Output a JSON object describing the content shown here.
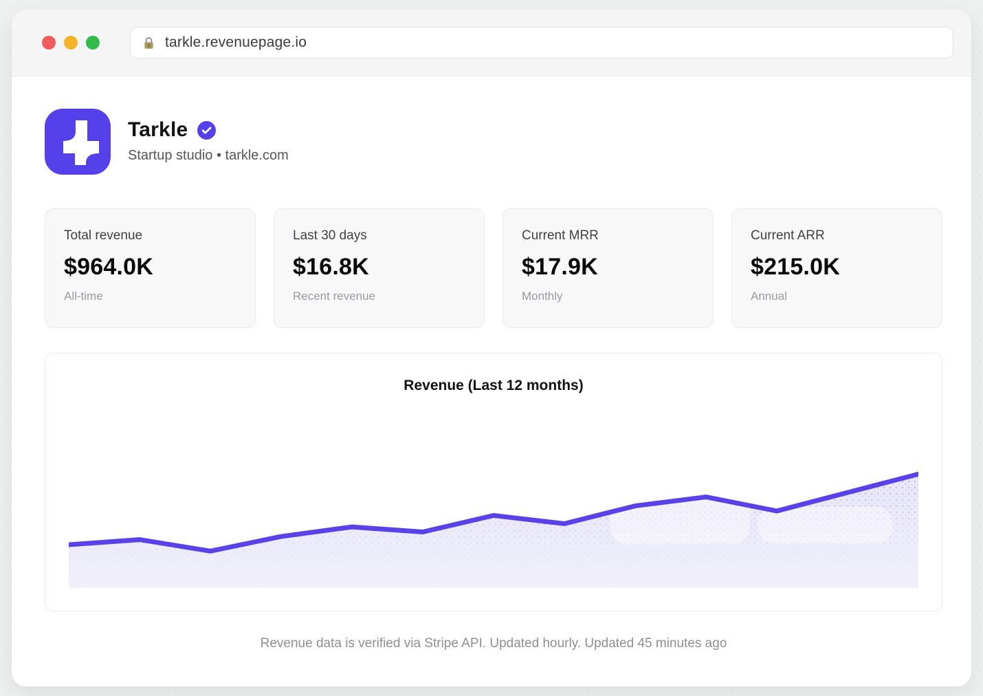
{
  "browser": {
    "url": "tarkle.revenuepage.io",
    "traffic_lights": {
      "close": "#f15b5c",
      "minimize": "#f3b32b",
      "zoom": "#30bb4a"
    }
  },
  "profile": {
    "name": "Tarkle",
    "verified": true,
    "subtitle": "Startup studio • tarkle.com"
  },
  "stats": [
    {
      "label": "Total revenue",
      "value": "$964.0K",
      "sublabel": "All-time"
    },
    {
      "label": "Last 30 days",
      "value": "$16.8K",
      "sublabel": "Recent revenue"
    },
    {
      "label": "Current MRR",
      "value": "$17.9K",
      "sublabel": "Monthly"
    },
    {
      "label": "Current ARR",
      "value": "$215.0K",
      "sublabel": "Annual"
    }
  ],
  "chart_data": {
    "type": "area",
    "title": "Revenue (Last 12 months)",
    "x": [
      1,
      2,
      3,
      4,
      5,
      6,
      7,
      8,
      9,
      10,
      11,
      12,
      13
    ],
    "values": [
      6.8,
      7.6,
      5.8,
      8.1,
      9.6,
      8.8,
      11.4,
      10.1,
      12.9,
      14.3,
      12.1,
      15.0,
      17.9
    ],
    "unit": "K USD",
    "ylim": [
      0,
      20
    ],
    "grid": false,
    "axes_labels_visible": false,
    "legend": false,
    "line_color": "#5a43e6",
    "dot_color": "#6550e8",
    "fill_gradient": [
      "#e9e7f8",
      "#f0effa"
    ]
  },
  "footer": {
    "text": "Revenue data is verified via Stripe API. Updated hourly. Updated 45 minutes ago"
  },
  "colors": {
    "accent": "#5640ea",
    "page_background": "#eff0f0",
    "card_background": "#f8f8f9"
  }
}
